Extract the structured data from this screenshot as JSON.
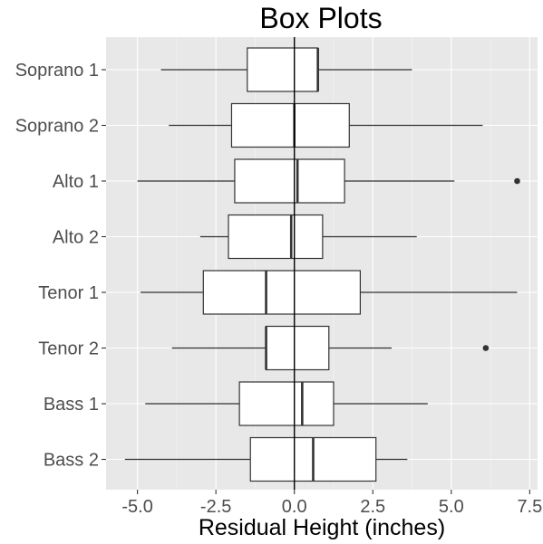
{
  "chart_data": {
    "type": "boxplot",
    "title": "Box Plots",
    "xlabel": "Residual Height (inches)",
    "ylabel": "",
    "xlim": [
      -6.0,
      7.75
    ],
    "x_ticks": [
      -5.0,
      -2.5,
      0.0,
      2.5,
      5.0,
      7.5
    ],
    "x_tick_labels": [
      "-5.0",
      "-2.5",
      "0.0",
      "2.5",
      "5.0",
      "7.5"
    ],
    "reference_line_x": 0.0,
    "grid": true,
    "legend": "none",
    "colors": {
      "panel_background": "#e8e8e8",
      "grid_major": "#ffffff",
      "box_fill": "#ffffff",
      "box_stroke": "#333333",
      "tick_text": "#4d4d4d",
      "title_text": "#000000"
    },
    "categories": [
      "Soprano 1",
      "Soprano 2",
      "Alto 1",
      "Alto 2",
      "Tenor 1",
      "Tenor 2",
      "Bass 1",
      "Bass 2"
    ],
    "boxes": [
      {
        "category": "Soprano 1",
        "min": -4.25,
        "q1": -1.5,
        "median": 0.75,
        "q3": 0.75,
        "max": 3.75,
        "outliers": []
      },
      {
        "category": "Soprano 2",
        "min": -4.0,
        "q1": -2.0,
        "median": 0.0,
        "q3": 1.75,
        "max": 6.0,
        "outliers": []
      },
      {
        "category": "Alto 1",
        "min": -5.0,
        "q1": -1.9,
        "median": 0.1,
        "q3": 1.6,
        "max": 5.1,
        "outliers": [
          7.1
        ]
      },
      {
        "category": "Alto 2",
        "min": -3.0,
        "q1": -2.1,
        "median": -0.1,
        "q3": 0.9,
        "max": 3.9,
        "outliers": []
      },
      {
        "category": "Tenor 1",
        "min": -4.9,
        "q1": -2.9,
        "median": -0.9,
        "q3": 2.1,
        "max": 7.1,
        "outliers": []
      },
      {
        "category": "Tenor 2",
        "min": -3.9,
        "q1": -0.9,
        "median": -0.9,
        "q3": 1.1,
        "max": 3.1,
        "outliers": [
          6.1
        ]
      },
      {
        "category": "Bass 1",
        "min": -4.75,
        "q1": -1.75,
        "median": 0.25,
        "q3": 1.25,
        "max": 4.25,
        "outliers": []
      },
      {
        "category": "Bass 2",
        "min": -5.4,
        "q1": -1.4,
        "median": 0.6,
        "q3": 2.6,
        "max": 3.6,
        "outliers": []
      }
    ]
  }
}
